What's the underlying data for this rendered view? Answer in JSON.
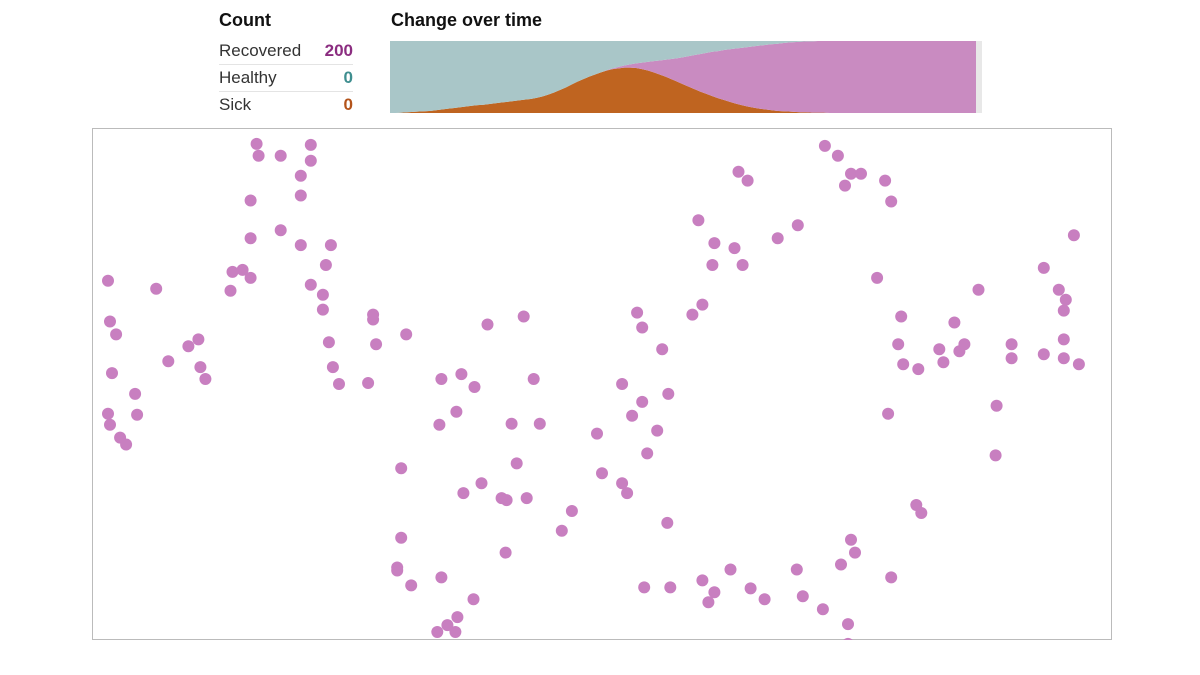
{
  "count_panel": {
    "title": "Count",
    "rows": [
      {
        "label": "Recovered",
        "value": "200",
        "color": "#8b2d80"
      },
      {
        "label": "Healthy",
        "value": "0",
        "color": "#3e8e8f"
      },
      {
        "label": "Sick",
        "value": "0",
        "color": "#b3531a"
      }
    ]
  },
  "change_panel": {
    "title": "Change over time"
  },
  "colors": {
    "healthy": "#a9c6c8",
    "sick": "#bf6420",
    "recovered": "#c98bc1",
    "dot": "#c87fc0",
    "border": "#bbbbbb"
  },
  "chart_data": [
    {
      "type": "area",
      "title": "Change over time",
      "stacking": "normal",
      "x": [
        0,
        1,
        2,
        3,
        4,
        5,
        6,
        7,
        8,
        9,
        10,
        11,
        12,
        13,
        14,
        15,
        16,
        17,
        18,
        19,
        20,
        21,
        22,
        23,
        24,
        25,
        26,
        27,
        28,
        29,
        30,
        31,
        32,
        33,
        34,
        35,
        36,
        37,
        38,
        39,
        40,
        41,
        42,
        43,
        44,
        45,
        46,
        47,
        48,
        49,
        50,
        51,
        52,
        53,
        54,
        55,
        56,
        57,
        58,
        59,
        60,
        61,
        62,
        63,
        64,
        65,
        66,
        67,
        68,
        69,
        70,
        71,
        72,
        73,
        74,
        75,
        76,
        77,
        78,
        79,
        80,
        81,
        82,
        83,
        84,
        85,
        86,
        87,
        88,
        89,
        90,
        91,
        92,
        93,
        94,
        95,
        96,
        97,
        98,
        99,
        100
      ],
      "series": [
        {
          "name": "Sick",
          "color": "#bf6420",
          "values": [
            0,
            0,
            1,
            2,
            3,
            4,
            5,
            6,
            8,
            10,
            12,
            14,
            16,
            18,
            20,
            22,
            23,
            25,
            27,
            29,
            31,
            33,
            35,
            37,
            39,
            42,
            46,
            51,
            57,
            64,
            71,
            79,
            87,
            94,
            101,
            107,
            113,
            118,
            122,
            124,
            126,
            126,
            125,
            122,
            118,
            113,
            107,
            101,
            94,
            87,
            80,
            73,
            66,
            59,
            53,
            47,
            41,
            36,
            31,
            26,
            22,
            18,
            15,
            12,
            10,
            8,
            6,
            5,
            4,
            3,
            2,
            2,
            1,
            1,
            1,
            0,
            0,
            0,
            0,
            0,
            0,
            0,
            0,
            0,
            0,
            0,
            0,
            0,
            0,
            0,
            0,
            0,
            0,
            0,
            0,
            0,
            0,
            0,
            0,
            0,
            0
          ]
        },
        {
          "name": "Recovered",
          "color": "#c98bc1",
          "values": [
            0,
            0,
            0,
            0,
            0,
            0,
            0,
            0,
            0,
            0,
            0,
            0,
            0,
            0,
            0,
            0,
            0,
            0,
            0,
            0,
            0,
            0,
            0,
            0,
            0,
            0,
            0,
            0,
            0,
            0,
            0,
            0,
            0,
            0,
            0,
            0,
            0,
            1,
            2,
            4,
            6,
            9,
            13,
            18,
            24,
            31,
            39,
            47,
            56,
            65,
            75,
            85,
            95,
            105,
            114,
            123,
            131,
            139,
            146,
            153,
            159,
            165,
            170,
            175,
            179,
            183,
            186,
            189,
            192,
            194,
            196,
            197,
            198,
            199,
            199,
            200,
            200,
            200,
            200,
            200,
            200,
            200,
            200,
            200,
            200,
            200,
            200,
            200,
            200,
            200,
            200,
            200,
            200,
            200,
            200,
            200,
            200,
            200,
            200,
            200,
            200
          ]
        },
        {
          "name": "Healthy",
          "color": "#a9c6c8",
          "values": [
            200,
            200,
            199,
            198,
            197,
            196,
            195,
            194,
            192,
            190,
            188,
            186,
            184,
            182,
            180,
            178,
            177,
            175,
            173,
            171,
            169,
            167,
            165,
            163,
            161,
            158,
            154,
            149,
            143,
            136,
            129,
            121,
            113,
            106,
            99,
            93,
            87,
            81,
            76,
            72,
            68,
            65,
            62,
            60,
            58,
            56,
            54,
            52,
            50,
            48,
            45,
            42,
            39,
            36,
            33,
            30,
            28,
            25,
            23,
            21,
            19,
            17,
            15,
            13,
            11,
            9,
            8,
            6,
            4,
            3,
            2,
            1,
            1,
            0,
            0,
            0,
            0,
            0,
            0,
            0,
            0,
            0,
            0,
            0,
            0,
            0,
            0,
            0,
            0,
            0,
            0,
            0,
            0,
            0,
            0,
            0,
            0,
            0,
            0,
            0,
            0
          ]
        }
      ],
      "ylim": [
        0,
        200
      ],
      "grid": false,
      "legend": "none"
    },
    {
      "type": "scatter",
      "color": "#c87fc0",
      "xlim": [
        0,
        1000
      ],
      "ylim": [
        0,
        500
      ],
      "points": [
        [
          156,
          8
        ],
        [
          158,
          20
        ],
        [
          8,
          146
        ],
        [
          56,
          154
        ],
        [
          150,
          143
        ],
        [
          142,
          135
        ],
        [
          200,
          40
        ],
        [
          210,
          25
        ],
        [
          10,
          187
        ],
        [
          16,
          200
        ],
        [
          12,
          239
        ],
        [
          8,
          280
        ],
        [
          10,
          291
        ],
        [
          20,
          304
        ],
        [
          26,
          311
        ],
        [
          37,
          281
        ],
        [
          35,
          260
        ],
        [
          68,
          227
        ],
        [
          88,
          212
        ],
        [
          105,
          245
        ],
        [
          100,
          233
        ],
        [
          98,
          205
        ],
        [
          130,
          156
        ],
        [
          132,
          137
        ],
        [
          150,
          103
        ],
        [
          180,
          95
        ],
        [
          150,
          65
        ],
        [
          180,
          20
        ],
        [
          210,
          9
        ],
        [
          200,
          60
        ],
        [
          200,
          110
        ],
        [
          230,
          110
        ],
        [
          225,
          130
        ],
        [
          222,
          160
        ],
        [
          222,
          175
        ],
        [
          228,
          208
        ],
        [
          232,
          233
        ],
        [
          210,
          150
        ],
        [
          238,
          250
        ],
        [
          272,
          180
        ],
        [
          272,
          185
        ],
        [
          305,
          200
        ],
        [
          267,
          249
        ],
        [
          275,
          210
        ],
        [
          300,
          335
        ],
        [
          362,
          360
        ],
        [
          380,
          350
        ],
        [
          405,
          367
        ],
        [
          425,
          365
        ],
        [
          415,
          330
        ],
        [
          410,
          290
        ],
        [
          432,
          245
        ],
        [
          422,
          182
        ],
        [
          340,
          245
        ],
        [
          400,
          365
        ],
        [
          360,
          240
        ],
        [
          386,
          190
        ],
        [
          338,
          291
        ],
        [
          355,
          278
        ],
        [
          373,
          253
        ],
        [
          300,
          405
        ],
        [
          296,
          435
        ],
        [
          340,
          445
        ],
        [
          404,
          420
        ],
        [
          372,
          467
        ],
        [
          354,
          500
        ],
        [
          356,
          485
        ],
        [
          346,
          493
        ],
        [
          310,
          453
        ],
        [
          296,
          438
        ],
        [
          336,
          500
        ],
        [
          470,
          378
        ],
        [
          460,
          398
        ],
        [
          500,
          340
        ],
        [
          438,
          290
        ],
        [
          495,
          300
        ],
        [
          520,
          350
        ],
        [
          525,
          360
        ],
        [
          545,
          320
        ],
        [
          555,
          297
        ],
        [
          542,
          455
        ],
        [
          568,
          455
        ],
        [
          600,
          448
        ],
        [
          606,
          470
        ],
        [
          648,
          456
        ],
        [
          662,
          467
        ],
        [
          628,
          437
        ],
        [
          612,
          460
        ],
        [
          565,
          390
        ],
        [
          530,
          282
        ],
        [
          520,
          250
        ],
        [
          540,
          268
        ],
        [
          566,
          260
        ],
        [
          560,
          215
        ],
        [
          535,
          178
        ],
        [
          540,
          193
        ],
        [
          590,
          180
        ],
        [
          600,
          170
        ],
        [
          610,
          130
        ],
        [
          596,
          85
        ],
        [
          612,
          108
        ],
        [
          645,
          45
        ],
        [
          636,
          36
        ],
        [
          640,
          130
        ],
        [
          632,
          113
        ],
        [
          675,
          103
        ],
        [
          695,
          90
        ],
        [
          742,
          50
        ],
        [
          748,
          38
        ],
        [
          735,
          20
        ],
        [
          722,
          10
        ],
        [
          758,
          38
        ],
        [
          782,
          45
        ],
        [
          788,
          66
        ],
        [
          774,
          143
        ],
        [
          798,
          182
        ],
        [
          795,
          210
        ],
        [
          800,
          230
        ],
        [
          785,
          280
        ],
        [
          815,
          235
        ],
        [
          836,
          215
        ],
        [
          840,
          228
        ],
        [
          856,
          217
        ],
        [
          851,
          188
        ],
        [
          861,
          210
        ],
        [
          875,
          155
        ],
        [
          908,
          210
        ],
        [
          908,
          224
        ],
        [
          940,
          220
        ],
        [
          960,
          205
        ],
        [
          960,
          224
        ],
        [
          975,
          230
        ],
        [
          960,
          176
        ],
        [
          955,
          155
        ],
        [
          940,
          133
        ],
        [
          970,
          100
        ],
        [
          962,
          165
        ],
        [
          893,
          272
        ],
        [
          892,
          322
        ],
        [
          813,
          372
        ],
        [
          818,
          380
        ],
        [
          748,
          407
        ],
        [
          788,
          445
        ],
        [
          738,
          432
        ],
        [
          752,
          420
        ],
        [
          720,
          477
        ],
        [
          745,
          492
        ],
        [
          745,
          512
        ],
        [
          700,
          464
        ],
        [
          694,
          437
        ]
      ]
    }
  ]
}
